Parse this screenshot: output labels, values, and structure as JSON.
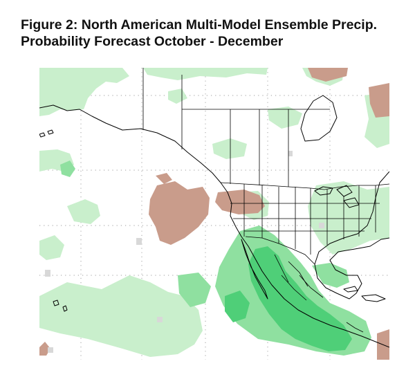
{
  "figure": {
    "title_line1": "Figure 2: North American Multi-Model Ensemble Precip.",
    "title_line2": "Probability Forecast October - December"
  },
  "map": {
    "region": "North America and Eastern Pacific",
    "colors": {
      "wet_light": "#c9efcc",
      "wet_medium": "#8fe0a0",
      "wet_strong": "#4fcf78",
      "dry_light": "#d7b4a4",
      "dry_medium": "#c99c8b",
      "no_signal": "#d8d8d8",
      "background": "#ffffff",
      "coastline": "#000000",
      "grid": "#b0b0b0"
    }
  }
}
